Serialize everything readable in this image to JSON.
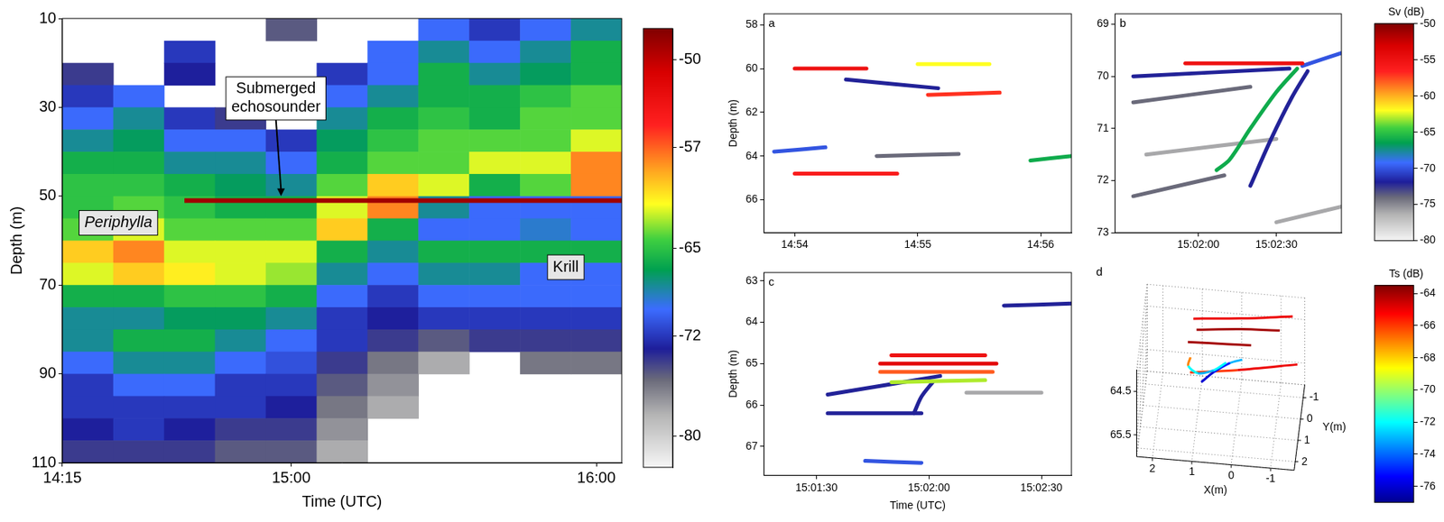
{
  "chart_data": [
    {
      "type": "heatmap",
      "xlabel": "Time (UTC)",
      "ylabel": "Depth (m)",
      "xlim": [
        855,
        965
      ],
      "xticks": [
        {
          "value": 855,
          "label": "14:15"
        },
        {
          "value": 900,
          "label": "15:00"
        },
        {
          "value": 960,
          "label": "16:00"
        }
      ],
      "ylim": [
        10,
        110
      ],
      "yticks": [
        10,
        30,
        50,
        70,
        90,
        110
      ],
      "heatmap": {
        "x_edges": [
          855,
          865,
          875,
          885,
          895,
          905,
          915,
          925,
          935,
          945,
          955,
          965
        ],
        "y_edges": [
          10,
          15,
          20,
          25,
          30,
          35,
          40,
          45,
          50,
          55,
          60,
          65,
          70,
          75,
          80,
          85,
          90,
          95,
          100,
          105,
          110
        ],
        "sv": [
          [
            null,
            null,
            null,
            null,
            -75,
            null,
            null,
            -70,
            -72,
            -70,
            -68
          ],
          [
            null,
            null,
            -72,
            null,
            null,
            null,
            -70,
            -68,
            -70,
            -68,
            -66
          ],
          [
            -74,
            null,
            -73,
            null,
            null,
            -72,
            -70,
            -66,
            -68,
            -67,
            -66
          ],
          [
            -72,
            -70,
            null,
            null,
            null,
            -70,
            -68,
            -66,
            -66,
            -65,
            -64
          ],
          [
            -70,
            -68,
            -72,
            -74,
            null,
            -68,
            -66,
            -65,
            -66,
            -64,
            -64
          ],
          [
            -68,
            -67,
            -70,
            -70,
            -72,
            -67,
            -65,
            -64,
            -64,
            -64,
            -62
          ],
          [
            -66,
            -66,
            -68,
            -68,
            -70,
            -66,
            -64,
            -64,
            -62,
            -62,
            -58
          ],
          [
            -65,
            -65,
            -66,
            -67,
            -68,
            -64,
            -60,
            -62,
            -66,
            -64,
            -58
          ],
          [
            -65,
            -64,
            -65,
            -66,
            -66,
            -62,
            -58,
            -68,
            -70,
            -70,
            -70
          ],
          [
            -64,
            -62,
            -64,
            -64,
            -64,
            -60,
            -66,
            -70,
            -70,
            -69,
            -70
          ],
          [
            -60,
            -58,
            -62,
            -62,
            -62,
            -66,
            -68,
            -66,
            -66,
            -66,
            -66
          ],
          [
            -62,
            -60,
            -61,
            -62,
            -63,
            -68,
            -70,
            -68,
            -68,
            -70,
            -70
          ],
          [
            -66,
            -66,
            -65,
            -65,
            -66,
            -70,
            -72,
            -70,
            -70,
            -70,
            -70
          ],
          [
            -68,
            -68,
            -67,
            -67,
            -68,
            -72,
            -73,
            -72,
            -72,
            -72,
            -72
          ],
          [
            -68,
            -66,
            -66,
            -68,
            -70,
            -72,
            -74,
            -75,
            -74,
            -74,
            -74
          ],
          [
            -70,
            -68,
            -68,
            -70,
            -71,
            -74,
            -76,
            -78,
            null,
            -76,
            -76
          ],
          [
            -72,
            -70,
            -70,
            -72,
            -72,
            -75,
            -77,
            null,
            null,
            null,
            null
          ],
          [
            -72,
            -72,
            -72,
            -72,
            -73,
            -76,
            -78,
            null,
            null,
            null,
            null
          ],
          [
            -73,
            -72,
            -73,
            -74,
            -74,
            -77,
            null,
            null,
            null,
            null,
            null
          ],
          [
            -74,
            -74,
            -74,
            -75,
            -75,
            -78,
            null,
            null,
            null,
            null,
            null
          ]
        ]
      },
      "colorbar": {
        "lim": [
          -82.5,
          -47.5
        ],
        "ticks": [
          -50,
          -57,
          -65,
          -72,
          -80
        ]
      },
      "series": [
        {
          "color": "#a00000",
          "x": [
            879,
            965
          ],
          "values": [
            51,
            51
          ]
        }
      ],
      "annotations": [
        {
          "text": "Submerged echosounder",
          "x": 897,
          "y": 28,
          "arrow": [
            898,
            50
          ]
        },
        {
          "text": "Periphylla",
          "x": 866,
          "y": 56
        },
        {
          "text": "Krill",
          "x": 954,
          "y": 66
        }
      ]
    },
    {
      "type": "line",
      "panel": "a",
      "ylabel": "Depth (m)",
      "xlim": [
        53625,
        53775
      ],
      "xticks": [
        {
          "value": 53640,
          "label": "14:54"
        },
        {
          "value": 53700,
          "label": "14:55"
        },
        {
          "value": 53760,
          "label": "14:56"
        }
      ],
      "ylim": [
        57.5,
        67.5
      ],
      "yticks": [
        58,
        60,
        62,
        64,
        66
      ],
      "traces": [
        {
          "x": [
            53640,
            53675
          ],
          "y": [
            60.0,
            60.0
          ],
          "sv": -55
        },
        {
          "x": [
            53700,
            53735
          ],
          "y": [
            59.8,
            59.8
          ],
          "sv": -62
        },
        {
          "x": [
            53665,
            53710
          ],
          "y": [
            60.5,
            60.9
          ],
          "sv": -72
        },
        {
          "x": [
            53705,
            53740
          ],
          "y": [
            61.2,
            61.1
          ],
          "sv": -57
        },
        {
          "x": [
            53630,
            53655
          ],
          "y": [
            63.8,
            63.6
          ],
          "sv": -70
        },
        {
          "x": [
            53640,
            53690
          ],
          "y": [
            64.8,
            64.8
          ],
          "sv": -56
        },
        {
          "x": [
            53755,
            53775
          ],
          "y": [
            64.2,
            64.0
          ],
          "sv": -66
        },
        {
          "x": [
            53680,
            53720
          ],
          "y": [
            64.0,
            63.9
          ],
          "sv": -74
        }
      ]
    },
    {
      "type": "line",
      "panel": "b",
      "xlim": [
        54088,
        54175
      ],
      "xticks": [
        {
          "value": 54120,
          "label": "15:02:00"
        },
        {
          "value": 54150,
          "label": "15:02:30"
        }
      ],
      "ylim": [
        68.8,
        73
      ],
      "yticks": [
        69,
        70,
        71,
        72,
        73
      ],
      "traces": [
        {
          "x": [
            54115,
            54160
          ],
          "y": [
            69.75,
            69.75
          ],
          "sv": -55
        },
        {
          "x": [
            54095,
            54155
          ],
          "y": [
            70.0,
            69.85
          ],
          "sv": -72
        },
        {
          "x": [
            54158,
            54150,
            54140,
            54132,
            54127
          ],
          "y": [
            69.85,
            70.3,
            71.0,
            71.6,
            71.8
          ],
          "sv": -66
        },
        {
          "x": [
            54162,
            54156,
            54148,
            54140
          ],
          "y": [
            69.9,
            70.4,
            71.2,
            72.1
          ],
          "sv": -72
        },
        {
          "x": [
            54160,
            54175
          ],
          "y": [
            69.8,
            69.55
          ],
          "sv": -70
        },
        {
          "x": [
            54095,
            54140
          ],
          "y": [
            70.5,
            70.2
          ],
          "sv": -74
        },
        {
          "x": [
            54100,
            54150
          ],
          "y": [
            71.5,
            71.2
          ],
          "sv": -76
        },
        {
          "x": [
            54095,
            54130
          ],
          "y": [
            72.3,
            71.9
          ],
          "sv": -74
        },
        {
          "x": [
            54150,
            54175
          ],
          "y": [
            72.8,
            72.5
          ],
          "sv": -76
        }
      ],
      "colorbar": {
        "label": "Sv (dB)",
        "lim": [
          -80,
          -50
        ],
        "ticks": [
          -50,
          -55,
          -60,
          -65,
          -70,
          -75,
          -80
        ]
      }
    },
    {
      "type": "line",
      "panel": "c",
      "xlabel": "Time (UTC)",
      "ylabel": "Depth (m)",
      "xlim": [
        54076,
        54158
      ],
      "xticks": [
        {
          "value": 54090,
          "label": "15:01:30"
        },
        {
          "value": 54120,
          "label": "15:02:00"
        },
        {
          "value": 54150,
          "label": "15:02:30"
        }
      ],
      "ylim": [
        62.8,
        67.7
      ],
      "yticks": [
        63,
        64,
        65,
        66,
        67
      ],
      "traces": [
        {
          "x": [
            54110,
            54135
          ],
          "y": [
            64.8,
            64.8
          ],
          "sv": -55
        },
        {
          "x": [
            54107,
            54138
          ],
          "y": [
            65.0,
            65.0
          ],
          "sv": -54
        },
        {
          "x": [
            54107,
            54137
          ],
          "y": [
            65.2,
            65.2
          ],
          "sv": -58
        },
        {
          "x": [
            54110,
            54135
          ],
          "y": [
            65.45,
            65.4
          ],
          "sv": -63
        },
        {
          "x": [
            54093,
            54123
          ],
          "y": [
            65.75,
            65.3
          ],
          "sv": -72
        },
        {
          "x": [
            54093,
            54118
          ],
          "y": [
            66.2,
            66.2
          ],
          "sv": -72
        },
        {
          "x": [
            54116,
            54118,
            54121
          ],
          "y": [
            66.2,
            65.8,
            65.45
          ],
          "sv": -72
        },
        {
          "x": [
            54130,
            54150
          ],
          "y": [
            65.7,
            65.7
          ],
          "sv": -76
        },
        {
          "x": [
            54140,
            54158
          ],
          "y": [
            63.6,
            63.55
          ],
          "sv": -72
        },
        {
          "x": [
            54103,
            54118
          ],
          "y": [
            67.35,
            67.4
          ],
          "sv": -70
        }
      ]
    },
    {
      "type": "line3d",
      "panel": "d",
      "xlabel": "X(m)",
      "ylabel": "Y(m)",
      "xlim": [
        -1.6,
        2.4
      ],
      "xticks": [
        -1,
        0,
        1,
        2
      ],
      "ylim": [
        -1.6,
        2.4
      ],
      "yticks": [
        -1,
        0,
        1,
        2
      ],
      "zlim": [
        64,
        66
      ],
      "zticks": [
        64.5,
        65.5
      ],
      "tracks": [
        {
          "x": [
            1.2,
            0,
            -1.3
          ],
          "y": [
            -1.2,
            -1.3,
            -1.5
          ],
          "z": [
            64.5,
            64.45,
            64.4
          ],
          "ts": [
            -65,
            -65,
            -68
          ]
        },
        {
          "x": [
            1.1,
            0,
            -1.0
          ],
          "y": [
            -0.9,
            -1.0,
            -1.1
          ],
          "z": [
            64.6,
            64.55,
            64.55
          ],
          "ts": [
            -64,
            -64,
            -66
          ]
        },
        {
          "x": [
            1.3,
            0.3,
            -0.3
          ],
          "y": [
            -0.6,
            -0.6,
            -0.7
          ],
          "z": [
            64.75,
            64.72,
            64.75
          ],
          "ts": [
            -64,
            -64,
            -64
          ]
        },
        {
          "x": [
            1.2,
            1.25,
            1.0,
            0.6,
            0.3
          ],
          "y": [
            -0.1,
            0,
            0.1,
            0,
            -0.2
          ],
          "z": [
            64.85,
            65.0,
            65.1,
            65.05,
            64.95
          ],
          "ts": [
            -67,
            -72,
            -73,
            -72,
            -71
          ]
        },
        {
          "x": [
            0.9,
            0.6,
            0.2,
            -0.1
          ],
          "y": [
            0.3,
            0.1,
            -0.2,
            -0.3
          ],
          "z": [
            65.2,
            65.05,
            64.95,
            64.9
          ],
          "ts": [
            -76,
            -75,
            -73,
            -72
          ]
        },
        {
          "x": [
            1.2,
            0,
            -1.5
          ],
          "y": [
            0.1,
            0,
            -0.3
          ],
          "z": [
            65.1,
            65.0,
            64.9
          ],
          "ts": [
            -66,
            -65,
            -66
          ]
        }
      ],
      "colorbar": {
        "label": "Ts (dB)",
        "lim": [
          -77,
          -63.5
        ],
        "ticks": [
          -64,
          -66,
          -68,
          -70,
          -72,
          -74,
          -76
        ]
      }
    }
  ]
}
